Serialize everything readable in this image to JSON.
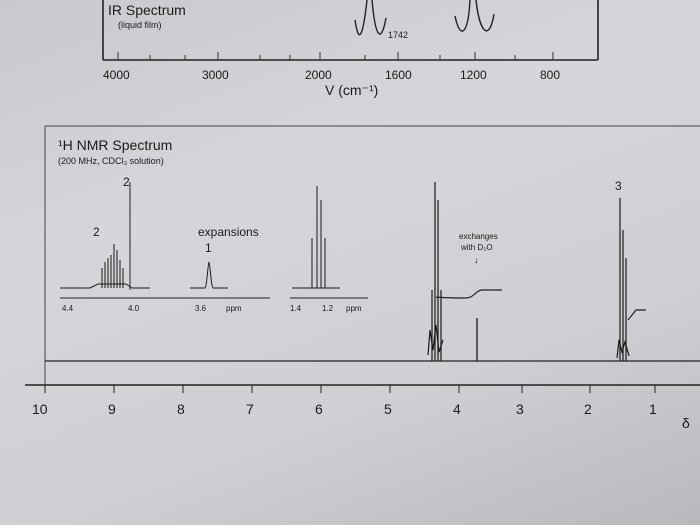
{
  "ir": {
    "title": "IR Spectrum",
    "subtitle": "(liquid film)",
    "ticks": [
      "4000",
      "3000",
      "2000",
      "1600",
      "1200",
      "800"
    ],
    "peak_label": "1742",
    "axis_label": "V (cm⁻¹)"
  },
  "nmr": {
    "title": "¹H NMR Spectrum",
    "subtitle": "(200 MHz, CDCl₃ solution)",
    "integration_a": "2",
    "integration_b": "3",
    "expansions_label": "expansions",
    "exp_left_int": "2",
    "exp_mid_int": "1",
    "exp_ticks_left": [
      "4.4",
      "4.0",
      "3.6"
    ],
    "exp_unit_left": "ppm",
    "exp_ticks_right": [
      "1.4",
      "1.2"
    ],
    "exp_unit_right": "ppm",
    "exchange_note_1": "exchanges",
    "exchange_note_2": "with D₂O",
    "exchange_arrow": "↓",
    "axis_ticks": [
      "10",
      "9",
      "8",
      "7",
      "6",
      "5",
      "4",
      "3",
      "2",
      "1"
    ],
    "axis_unit": "δ"
  }
}
